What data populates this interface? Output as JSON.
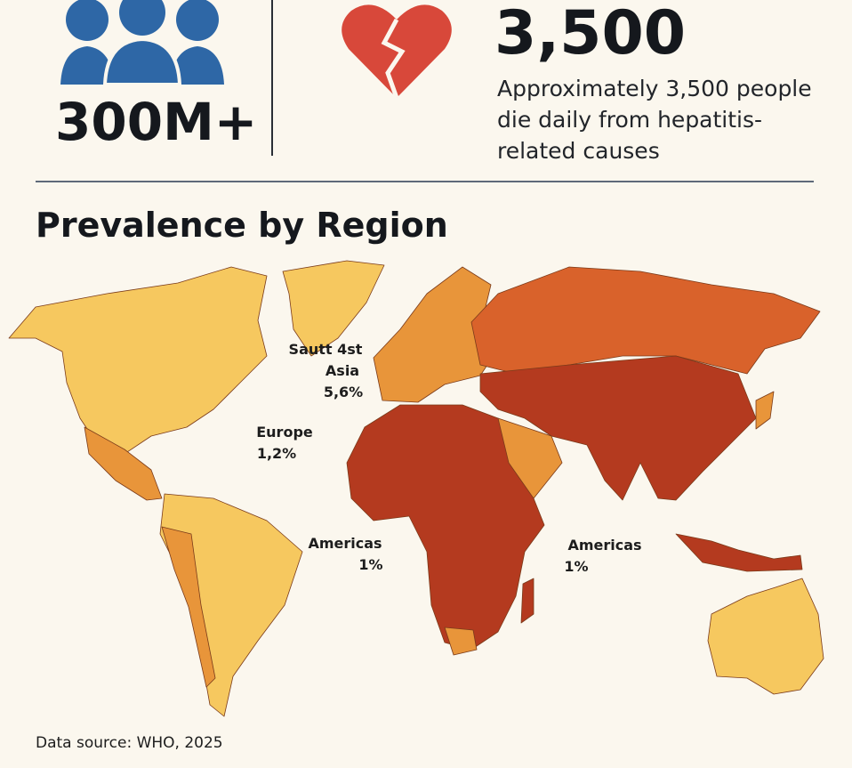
{
  "people_stat": {
    "value": "300M+"
  },
  "deaths_stat": {
    "value": "3,500",
    "description": [
      "Approximately 3,500 people",
      "die daily from hepatitis-",
      "related causes"
    ]
  },
  "map": {
    "title": "Prevalence by Region",
    "labels": [
      {
        "lines": [
          "Sautt 4st",
          "Asia",
          "5,6%"
        ]
      },
      {
        "lines": [
          "Europe",
          "1,2%"
        ]
      },
      {
        "lines": [
          "Americas",
          "1%"
        ]
      },
      {
        "lines": [
          "Americas",
          "1%"
        ]
      }
    ]
  },
  "footer": "Data source: WHO, 2025"
}
